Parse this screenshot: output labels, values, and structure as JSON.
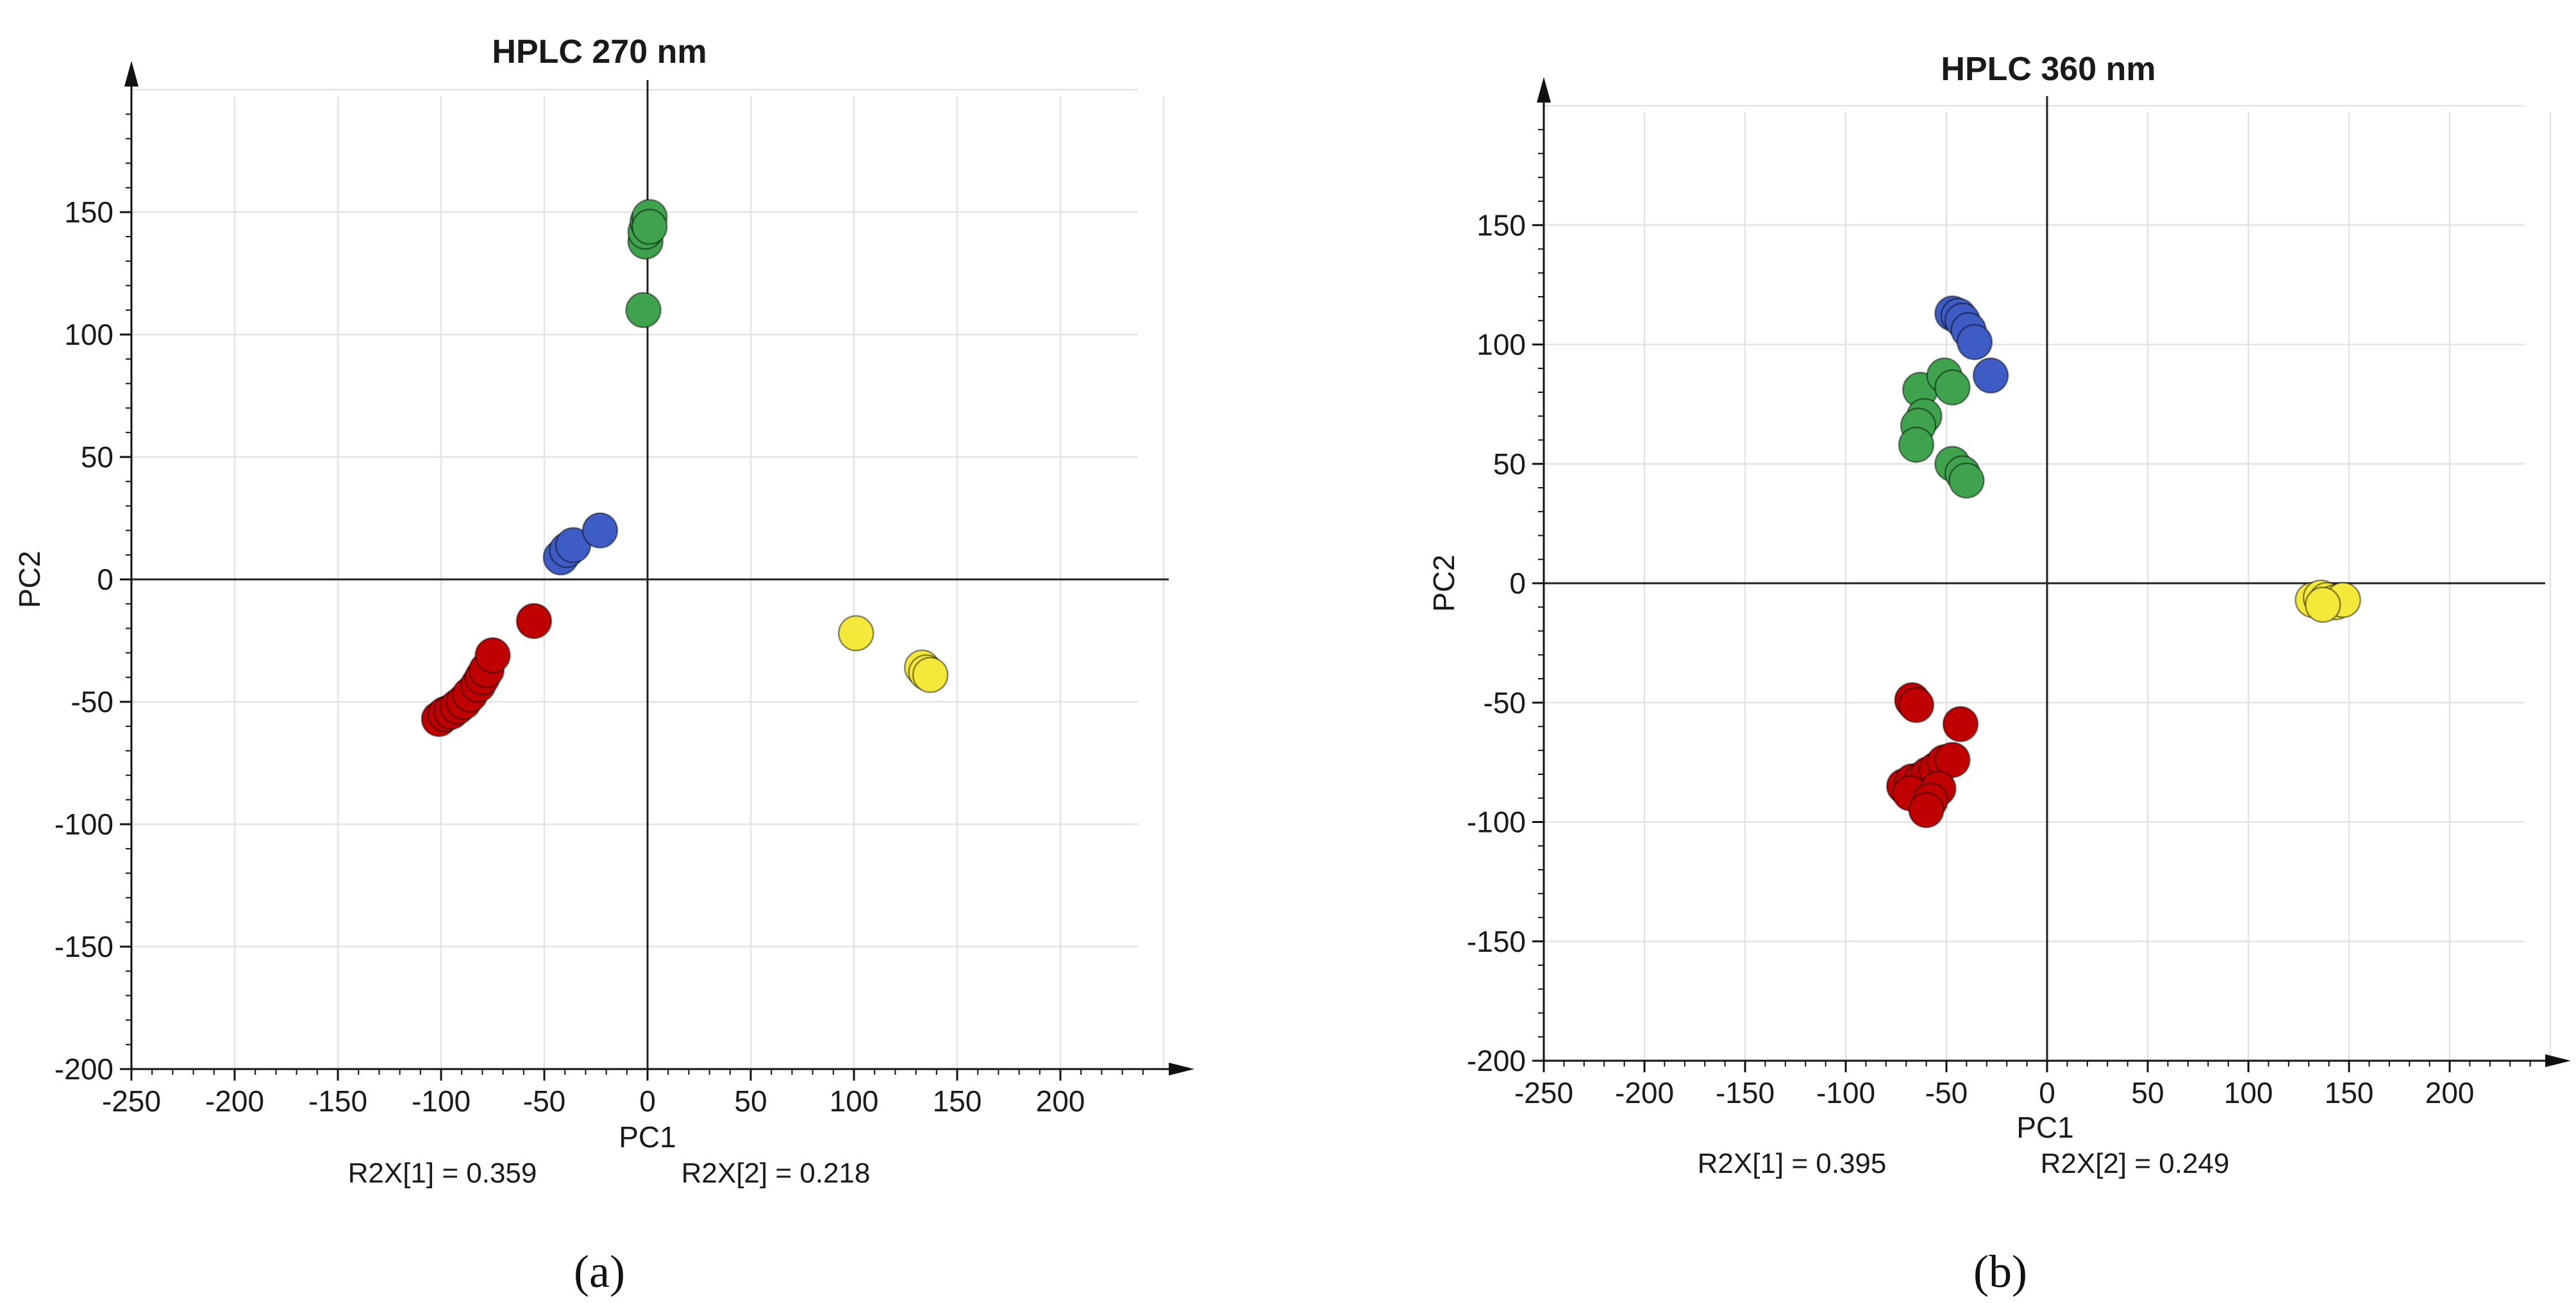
{
  "chart_data": [
    {
      "type": "scatter",
      "title": "HPLC 270 nm",
      "xlabel": "PC1",
      "ylabel": "PC2",
      "xlim": [
        -250,
        250
      ],
      "ylim": [
        -200,
        200
      ],
      "xticks": [
        -250,
        -200,
        -150,
        -100,
        -50,
        0,
        50,
        100,
        150,
        200
      ],
      "yticks": [
        -200,
        -150,
        -100,
        -50,
        0,
        50,
        100,
        150
      ],
      "grid": true,
      "r2x_1": "R2X[1] = 0.359",
      "r2x_2": "R2X[2] = 0.218",
      "panel_label": "(a)",
      "series": [
        {
          "name": "green",
          "color": "#3fa34d",
          "points": [
            [
              -1,
              138
            ],
            [
              -1,
              142
            ],
            [
              0,
              146
            ],
            [
              1,
              148
            ],
            [
              1,
              144
            ],
            [
              -2,
              110
            ]
          ]
        },
        {
          "name": "blue",
          "color": "#3f5bc4",
          "points": [
            [
              -42,
              9
            ],
            [
              -39,
              12
            ],
            [
              -36,
              14
            ],
            [
              -23,
              20
            ]
          ]
        },
        {
          "name": "red",
          "color": "#c00000",
          "points": [
            [
              -101,
              -57
            ],
            [
              -98,
              -55
            ],
            [
              -95,
              -54
            ],
            [
              -92,
              -52
            ],
            [
              -89,
              -50
            ],
            [
              -86,
              -47
            ],
            [
              -82,
              -43
            ],
            [
              -80,
              -40
            ],
            [
              -78,
              -37
            ],
            [
              -75,
              -31
            ],
            [
              -55,
              -17
            ]
          ]
        },
        {
          "name": "yellow",
          "color": "#f4e93b",
          "points": [
            [
              101,
              -22
            ],
            [
              133,
              -36
            ],
            [
              135,
              -38
            ],
            [
              137,
              -39
            ]
          ]
        }
      ]
    },
    {
      "type": "scatter",
      "title": "HPLC 360 nm",
      "xlabel": "PC1",
      "ylabel": "PC2",
      "xlim": [
        -250,
        250
      ],
      "ylim": [
        -200,
        200
      ],
      "xticks": [
        -250,
        -200,
        -150,
        -100,
        -50,
        0,
        50,
        100,
        150,
        200
      ],
      "yticks": [
        -200,
        -150,
        -100,
        -50,
        0,
        50,
        100,
        150
      ],
      "grid": true,
      "r2x_1": "R2X[1] = 0.395",
      "r2x_2": "R2X[2] = 0.249",
      "panel_label": "(b)",
      "series": [
        {
          "name": "blue",
          "color": "#3f5bc4",
          "points": [
            [
              -47,
              113
            ],
            [
              -44,
              112
            ],
            [
              -42,
              110
            ],
            [
              -39,
              106
            ],
            [
              -36,
              101
            ],
            [
              -28,
              87
            ]
          ]
        },
        {
          "name": "green",
          "color": "#3fa34d",
          "points": [
            [
              -63,
              81
            ],
            [
              -51,
              87
            ],
            [
              -47,
              82
            ],
            [
              -61,
              70
            ],
            [
              -64,
              66
            ],
            [
              -65,
              58
            ],
            [
              -47,
              50
            ],
            [
              -42,
              46
            ],
            [
              -40,
              43
            ]
          ]
        },
        {
          "name": "red",
          "color": "#c00000",
          "points": [
            [
              -67,
              -49
            ],
            [
              -65,
              -51
            ],
            [
              -43,
              -59
            ],
            [
              -71,
              -85
            ],
            [
              -67,
              -83
            ],
            [
              -62,
              -82
            ],
            [
              -59,
              -80
            ],
            [
              -55,
              -78
            ],
            [
              -51,
              -75
            ],
            [
              -47,
              -74
            ],
            [
              -68,
              -88
            ],
            [
              -54,
              -86
            ],
            [
              -58,
              -91
            ],
            [
              -60,
              -95
            ]
          ]
        },
        {
          "name": "yellow",
          "color": "#f4e93b",
          "points": [
            [
              132,
              -7
            ],
            [
              136,
              -6
            ],
            [
              139,
              -7
            ],
            [
              143,
              -8
            ],
            [
              147,
              -7
            ],
            [
              137,
              -9
            ]
          ]
        }
      ]
    }
  ]
}
